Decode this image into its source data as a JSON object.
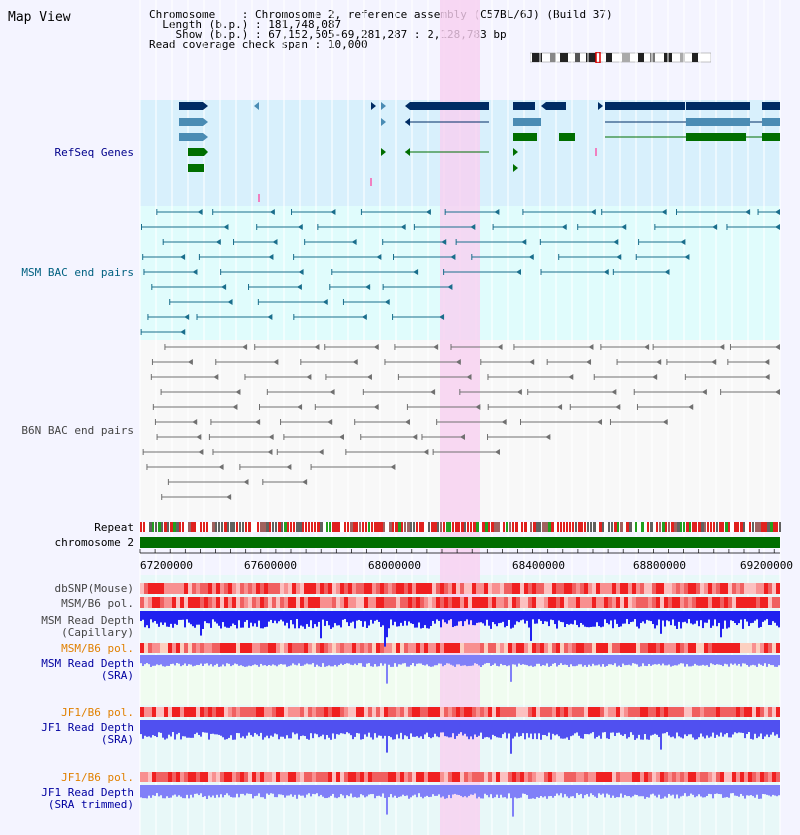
{
  "title": "Map View",
  "info": {
    "chromosome_key": "Chromosome",
    "chromosome_val": "Chromosome 2, reference assembly (C57BL/6J) (Build 37)",
    "length_key": "Length (b.p.)",
    "length_val": "181,748,087",
    "show_key": "Show (b.p.)",
    "show_val": "67,152,505-69,281,287 : 2,128,783 bp",
    "span_key": "Read coverage check span",
    "span_val": "10,000"
  },
  "tracks": {
    "refseq": "RefSeq Genes",
    "msm_bac": "MSM BAC end pairs",
    "b6n_bac": "B6N BAC end pairs",
    "repeat": "Repeat",
    "chromosome": "chromosome 2",
    "dbsnp": "dbSNP(Mouse)",
    "msm_pol": "MSM/B6 pol.",
    "msm_depth_cap_1": "MSM Read Depth",
    "msm_depth_cap_2": "(Capillary)",
    "msm_pol2": "MSM/B6 pol.",
    "msm_depth_sra_1": "MSM Read Depth",
    "msm_depth_sra_2": "(SRA)",
    "jf1_pol": "JF1/B6 pol.",
    "jf1_depth_sra_1": "JF1 Read Depth",
    "jf1_depth_sra_2": "(SRA)",
    "jf1_pol2": "JF1/B6 pol.",
    "jf1_depth_trim_1": "JF1 Read Depth",
    "jf1_depth_trim_2": "(SRA trimmed)"
  },
  "axis": {
    "ticks": [
      "67200000",
      "67600000",
      "68000000",
      "68400000",
      "68800000",
      "69200000"
    ]
  },
  "colors": {
    "refseq_bg": "#d8f0fc",
    "bac_bg": "#e0fcfc",
    "highlight": "#f8d0f0",
    "gene_navy": "#002c64",
    "gene_steel": "#4a8cb4",
    "gene_green": "#006e00",
    "chromosome_bar": "#006e00",
    "snp_red": "#f04040",
    "depth_blue": "#2020f0",
    "depth_light": "#8080f8"
  }
}
